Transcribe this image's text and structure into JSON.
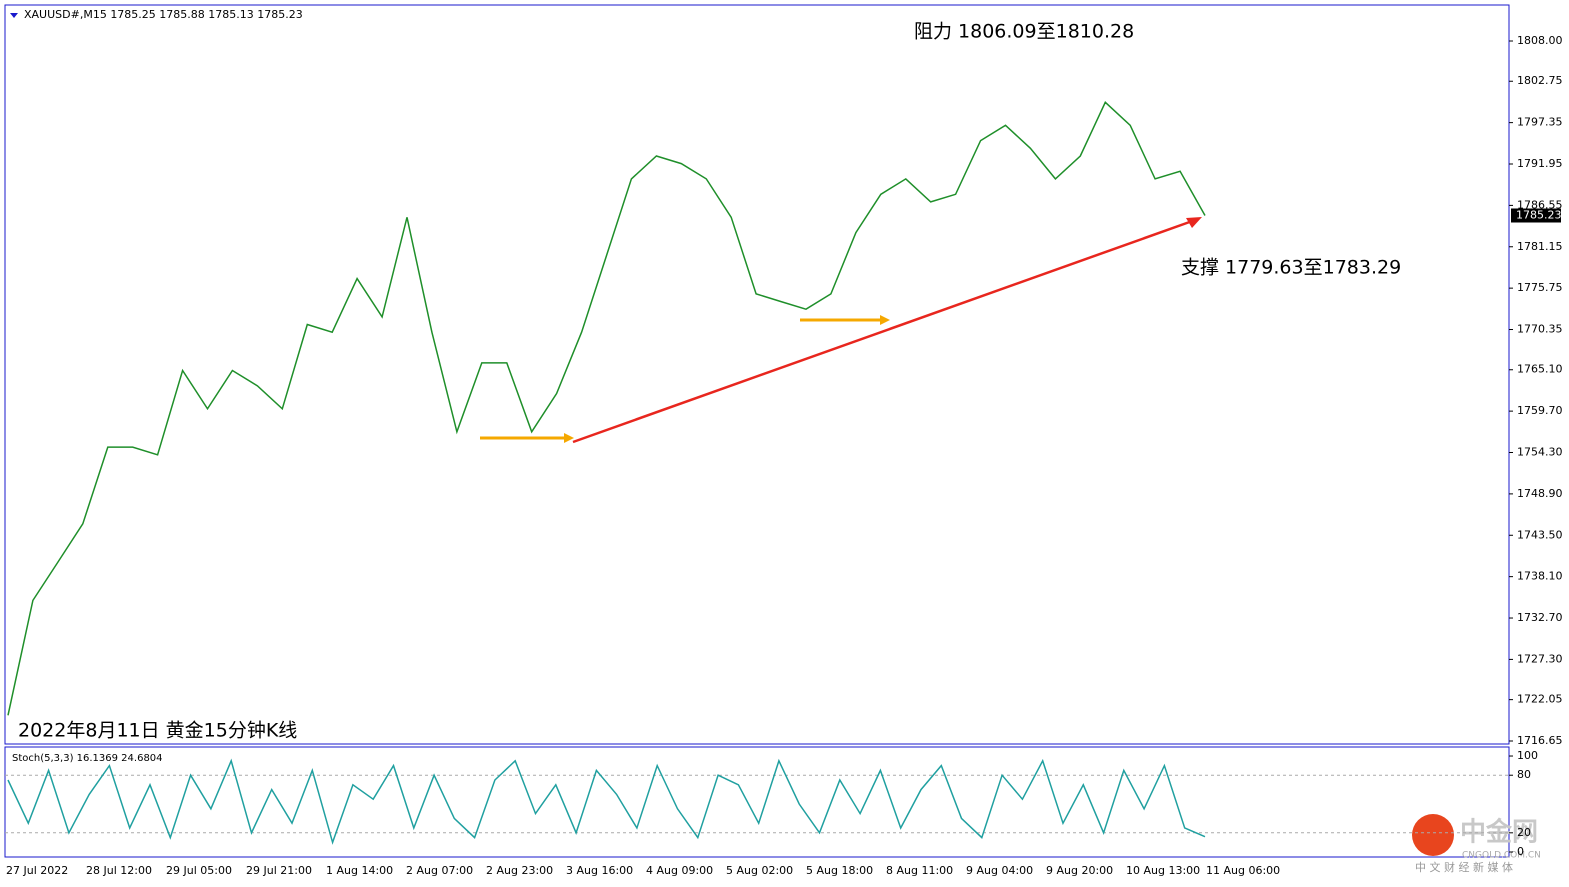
{
  "header": "XAUUSD#,M15  1785.25 1785.88 1785.13 1785.23",
  "time_labels": [
    "27 Jul 2022",
    "28 Jul 12:00",
    "29 Jul 05:00",
    "29 Jul 21:00",
    "1 Aug 14:00",
    "2 Aug 07:00",
    "2 Aug 23:00",
    "3 Aug 16:00",
    "4 Aug 09:00",
    "5 Aug 02:00",
    "5 Aug 18:00",
    "8 Aug 11:00",
    "9 Aug 04:00",
    "9 Aug 20:00",
    "10 Aug 13:00",
    "11 Aug 06:00"
  ],
  "watermark": {
    "brand": "中金网",
    "site": "CNGOLD.COM.CN",
    "slogan": "中 文 财 经 新 媒 体"
  },
  "chart_data": [
    {
      "type": "line",
      "title": "2022年8月11日 黄金15分钟K线",
      "annotations": [
        "阻力 1806.09至1810.28",
        "支撑 1779.63至1783.29"
      ],
      "last_price": {
        "value": 1785.23,
        "label": "1785.23"
      },
      "series": [
        {
          "color": "#1f8f2a",
          "values": [
            1720,
            1735,
            1740,
            1745,
            1755,
            1755,
            1754,
            1765,
            1760,
            1765,
            1763,
            1760,
            1771,
            1770,
            1777,
            1772,
            1785,
            1770,
            1757,
            1766,
            1766,
            1757,
            1762,
            1770,
            1780,
            1790,
            1793,
            1792,
            1790,
            1785,
            1775,
            1774,
            1773,
            1775,
            1783,
            1788,
            1790,
            1787,
            1788,
            1795,
            1797,
            1794,
            1790,
            1793,
            1800,
            1797,
            1790,
            1791,
            1785.23
          ]
        }
      ],
      "ylim": [
        1716.26,
        1812.7
      ],
      "yticks": [
        {
          "value": 1808,
          "label": "1808.00"
        },
        {
          "value": 1802.75,
          "label": "1802.75"
        },
        {
          "value": 1797.35,
          "label": "1797.35"
        },
        {
          "value": 1791.95,
          "label": "1791.95"
        },
        {
          "value": 1786.55,
          "label": "1786.55"
        },
        {
          "value": 1781.15,
          "label": "1781.15"
        },
        {
          "value": 1775.75,
          "label": "1775.75"
        },
        {
          "value": 1770.35,
          "label": "1770.35"
        },
        {
          "value": 1765.1,
          "label": "1765.10"
        },
        {
          "value": 1759.7,
          "label": "1759.70"
        },
        {
          "value": 1754.3,
          "label": "1754.30"
        },
        {
          "value": 1748.9,
          "label": "1748.90"
        },
        {
          "value": 1743.5,
          "label": "1743.50"
        },
        {
          "value": 1738.1,
          "label": "1738.10"
        },
        {
          "value": 1732.7,
          "label": "1732.70"
        },
        {
          "value": 1727.3,
          "label": "1727.30"
        },
        {
          "value": 1722.05,
          "label": "1722.05"
        },
        {
          "value": 1716.65,
          "label": "1716.65"
        }
      ]
    },
    {
      "type": "line",
      "title": "Stoch(5,3,3) 16.1369 24.6804",
      "series": [
        {
          "color": "#20a0a0",
          "values": [
            75,
            30,
            85,
            20,
            60,
            90,
            25,
            70,
            15,
            80,
            45,
            95,
            20,
            65,
            30,
            85,
            10,
            70,
            55,
            90,
            25,
            80,
            35,
            15,
            75,
            95,
            40,
            70,
            20,
            85,
            60,
            25,
            90,
            45,
            15,
            80,
            70,
            30,
            95,
            50,
            20,
            75,
            40,
            85,
            25,
            65,
            90,
            35,
            15,
            80,
            55,
            95,
            30,
            70,
            20,
            85,
            45,
            90,
            25,
            16
          ]
        }
      ],
      "levels": [
        80,
        20
      ],
      "ylim": [
        -5.2,
        109.4
      ],
      "yticks": [
        100,
        80,
        20,
        0
      ]
    }
  ]
}
